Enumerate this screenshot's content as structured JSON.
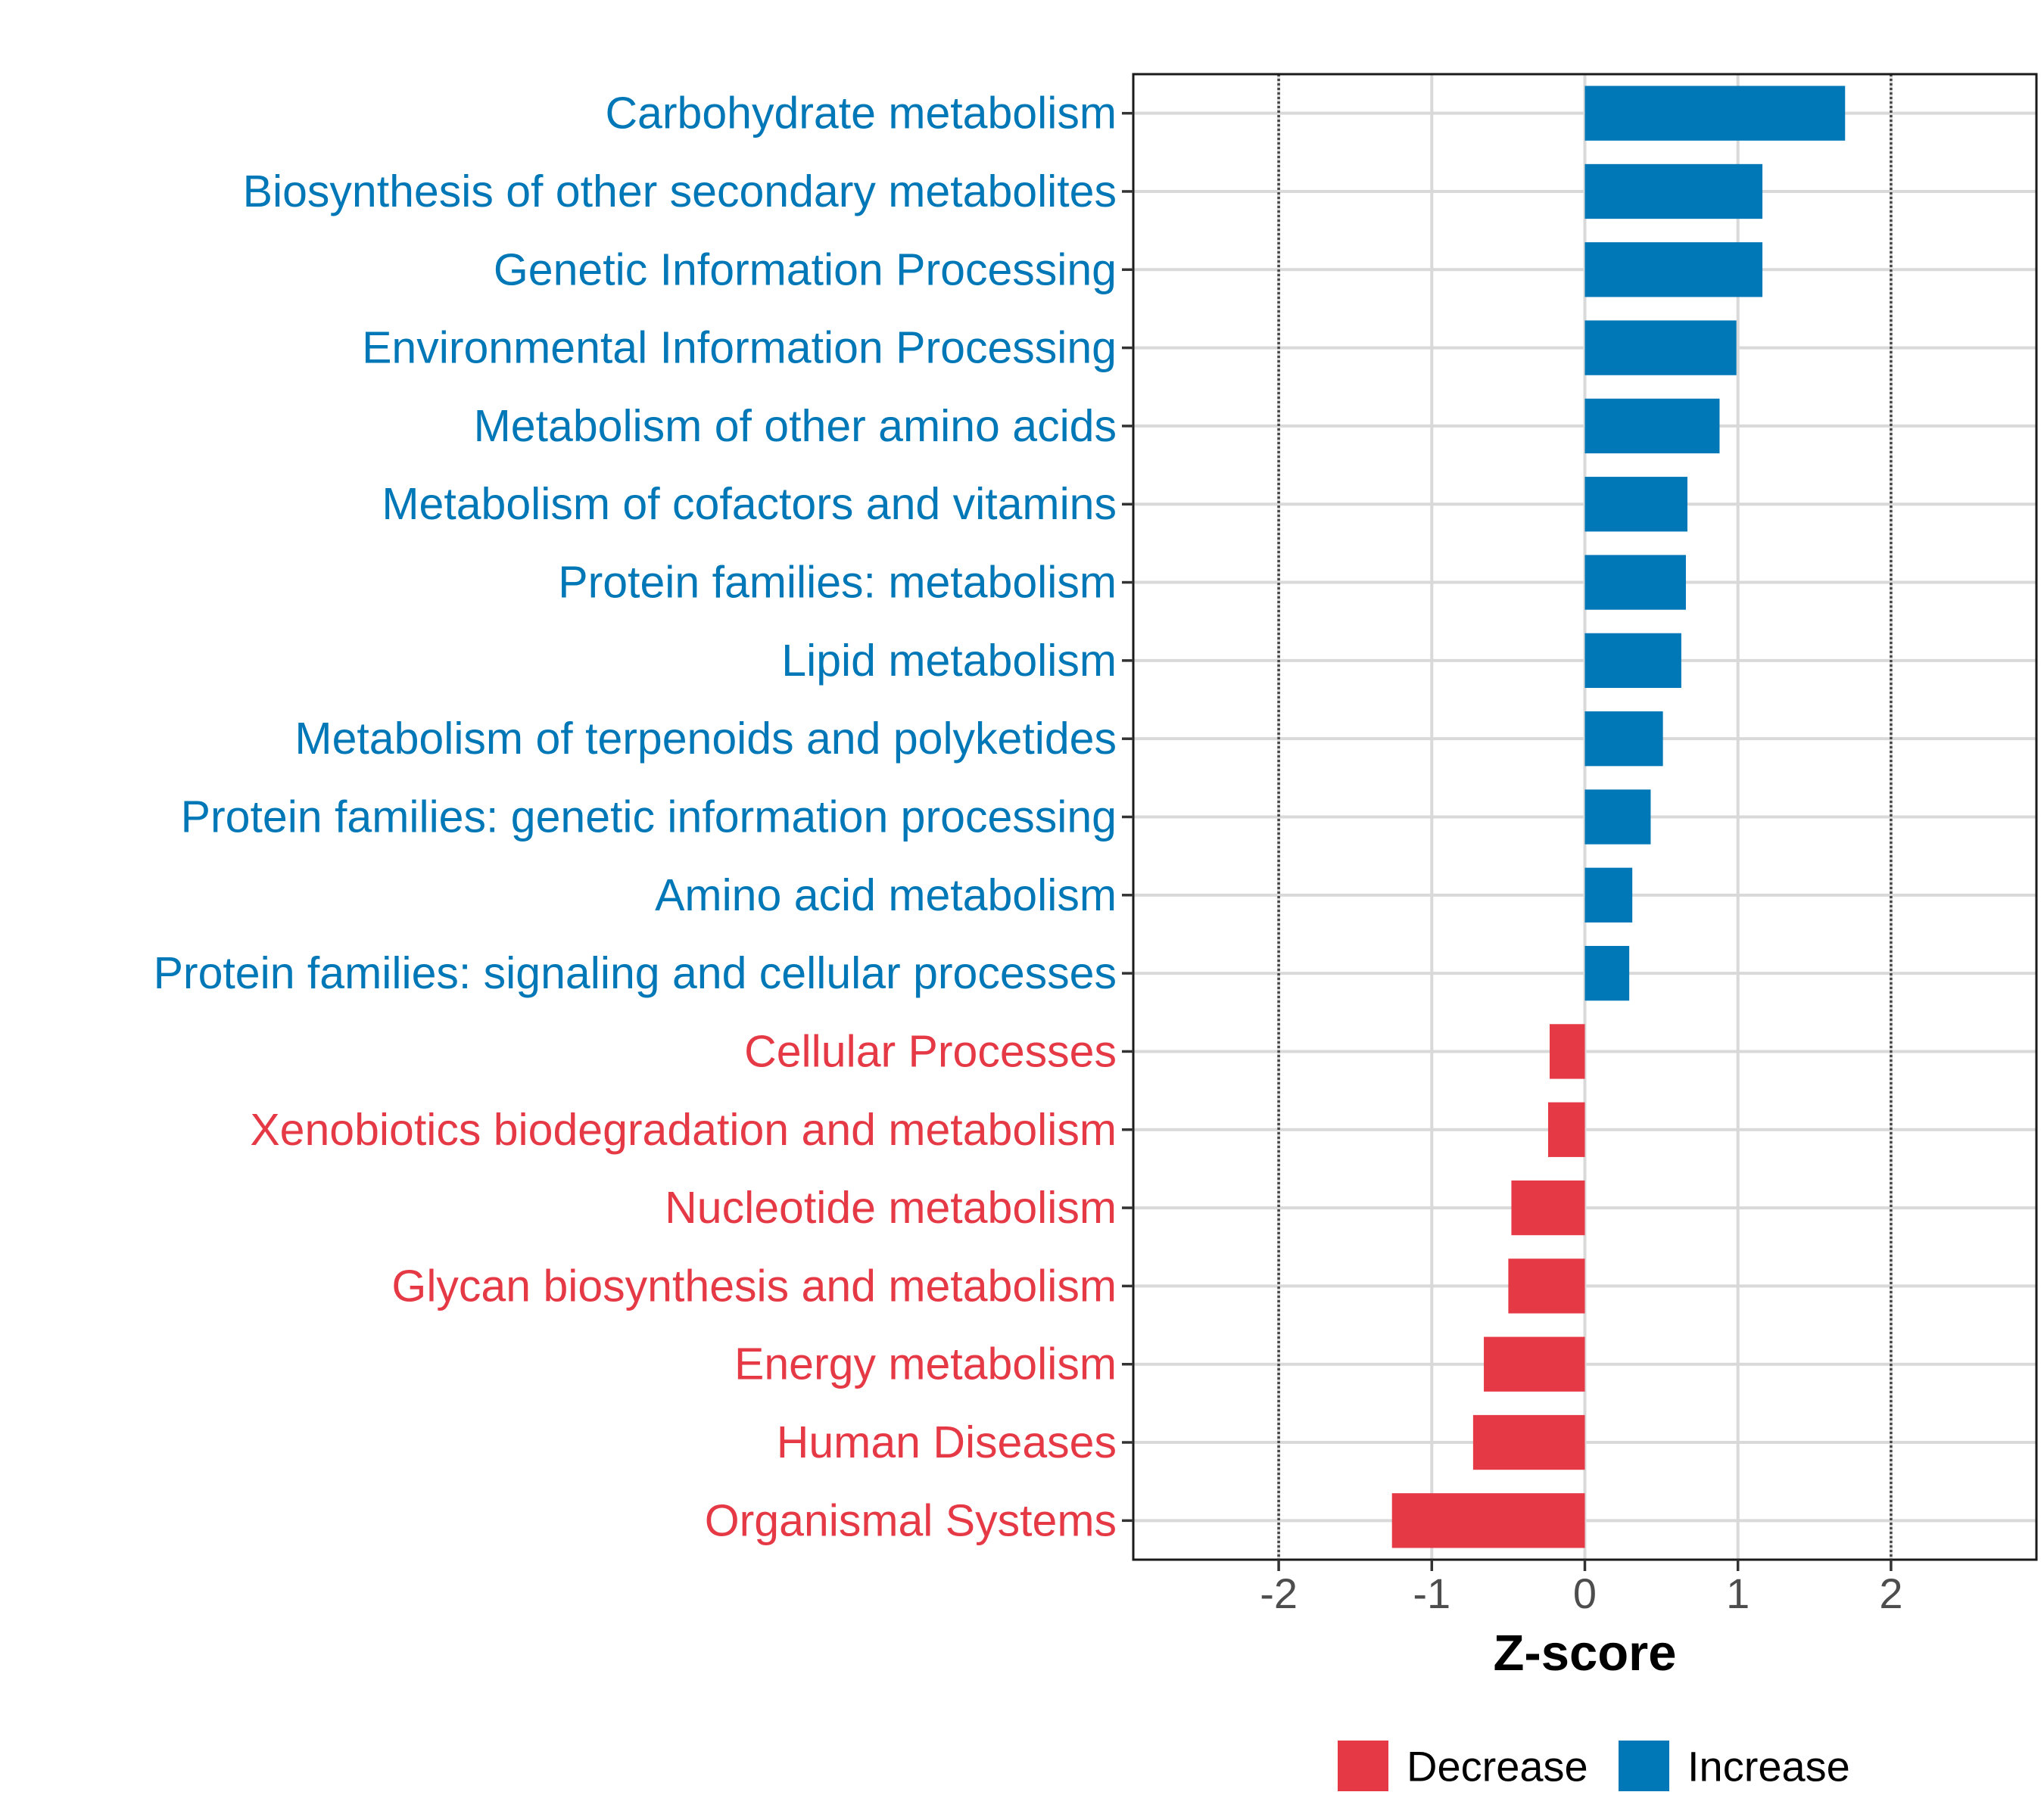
{
  "chart_data": {
    "type": "bar",
    "orientation": "horizontal",
    "title": "",
    "xlabel": "Z-score",
    "ylabel": "",
    "xlim": [
      -2.95,
      2.95
    ],
    "xticks": [
      -2,
      -1,
      0,
      1,
      2
    ],
    "xtick_labels": [
      "-2",
      "-1",
      "0",
      "1",
      "2"
    ],
    "reference_lines": [
      -2,
      2
    ],
    "grid": true,
    "legend_position": "bottom",
    "colors": {
      "Decrease": "#e63946",
      "Increase": "#0077b6",
      "axis_text": "#4d4d4d",
      "grid": "#d9d9d9"
    },
    "legend": [
      {
        "label": "Decrease",
        "color": "#e63946"
      },
      {
        "label": "Increase",
        "color": "#0077b6"
      }
    ],
    "categories": [
      "Carbohydrate metabolism",
      "Biosynthesis of other secondary metabolites",
      "Genetic Information Processing",
      "Environmental Information Processing",
      "Metabolism of other amino acids",
      "Metabolism of cofactors and vitamins",
      "Protein families: metabolism",
      "Lipid metabolism",
      "Metabolism of terpenoids and polyketides",
      "Protein families: genetic information processing",
      "Amino acid metabolism",
      "Protein families: signaling and cellular processes",
      "Cellular Processes",
      "Xenobiotics biodegradation and metabolism",
      "Nucleotide metabolism",
      "Glycan biosynthesis and metabolism",
      "Energy metabolism",
      "Human Diseases",
      "Organismal Systems"
    ],
    "values": [
      1.7,
      1.16,
      1.16,
      0.99,
      0.88,
      0.67,
      0.66,
      0.63,
      0.51,
      0.43,
      0.31,
      0.29,
      -0.23,
      -0.24,
      -0.48,
      -0.5,
      -0.66,
      -0.73,
      -1.26
    ],
    "groups": [
      "Increase",
      "Increase",
      "Increase",
      "Increase",
      "Increase",
      "Increase",
      "Increase",
      "Increase",
      "Increase",
      "Increase",
      "Increase",
      "Increase",
      "Decrease",
      "Decrease",
      "Decrease",
      "Decrease",
      "Decrease",
      "Decrease",
      "Decrease"
    ]
  }
}
